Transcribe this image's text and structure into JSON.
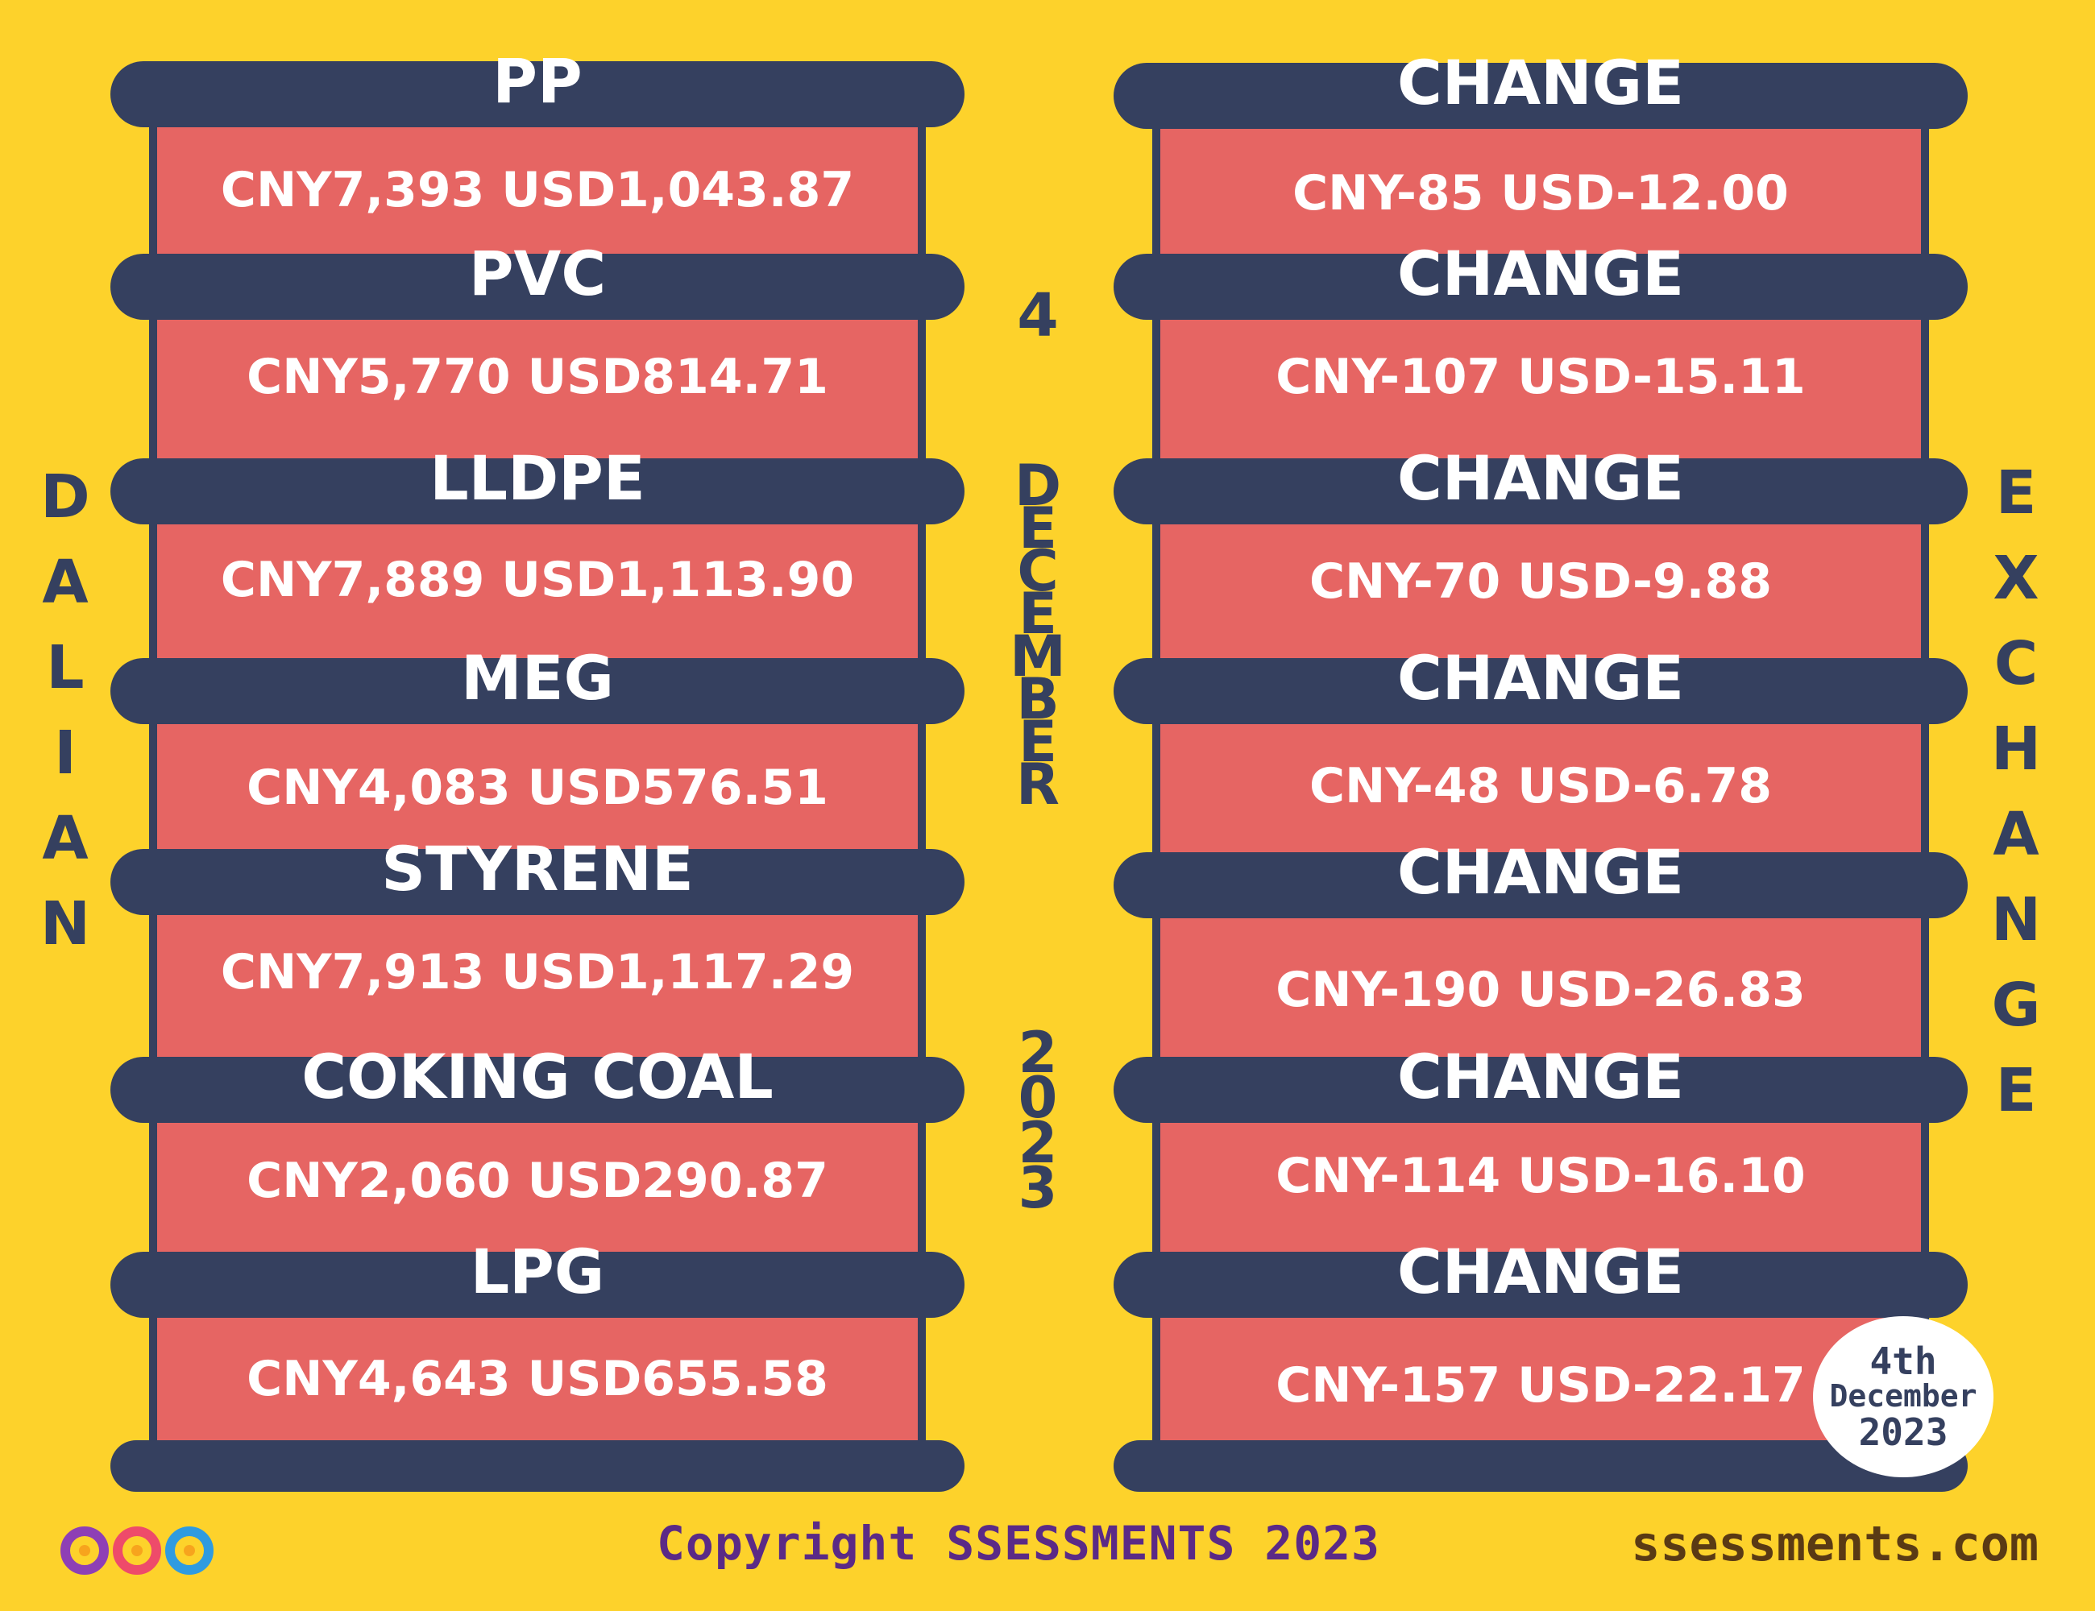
{
  "left_column": {
    "rows": [
      {
        "commodity": "PP",
        "price": "CNY7,393  USD1,043.87"
      },
      {
        "commodity": "PVC",
        "price": "CNY5,770  USD814.71"
      },
      {
        "commodity": "LLDPE",
        "price": "CNY7,889  USD1,113.90"
      },
      {
        "commodity": "MEG",
        "price": "CNY4,083  USD576.51"
      },
      {
        "commodity": "STYRENE",
        "price": "CNY7,913  USD1,117.29"
      },
      {
        "commodity": "COKING COAL",
        "price": "CNY2,060  USD290.87"
      },
      {
        "commodity": "LPG",
        "price": "CNY4,643  USD655.58"
      }
    ]
  },
  "right_column": {
    "rows": [
      {
        "heading": "CHANGE",
        "change": "CNY-85  USD-12.00"
      },
      {
        "heading": "CHANGE",
        "change": "CNY-107  USD-15.11"
      },
      {
        "heading": "CHANGE",
        "change": "CNY-70  USD-9.88"
      },
      {
        "heading": "CHANGE",
        "change": "CNY-48  USD-6.78"
      },
      {
        "heading": "CHANGE",
        "change": "CNY-190  USD-26.83"
      },
      {
        "heading": "CHANGE",
        "change": "CNY-114  USD-16.10"
      },
      {
        "heading": "CHANGE",
        "change": "CNY-157  USD-22.17"
      }
    ]
  },
  "vertical_text": {
    "left": [
      "D",
      "A",
      "L",
      "I",
      "A",
      "N"
    ],
    "right": [
      "E",
      "X",
      "C",
      "H",
      "A",
      "N",
      "G",
      "E"
    ],
    "date_day": "4",
    "date_month": [
      "D",
      "E",
      "C",
      "E",
      "M",
      "B",
      "E",
      "R"
    ],
    "date_year": [
      "2",
      "0",
      "2",
      "3"
    ]
  },
  "date_badge": {
    "line1": "4th",
    "line2": "December",
    "line3": "2023"
  },
  "footer": {
    "copyright": "Copyright SSESSMENTS 2023",
    "website": "ssessments.com"
  },
  "logo_icon": "infinity-rings-logo-icon",
  "colors": {
    "background": "#fdd22b",
    "band": "#35405f",
    "panel": "#e66563",
    "text_light": "#ffffff",
    "copyright": "#5b2a86",
    "website": "#5a3a14"
  }
}
